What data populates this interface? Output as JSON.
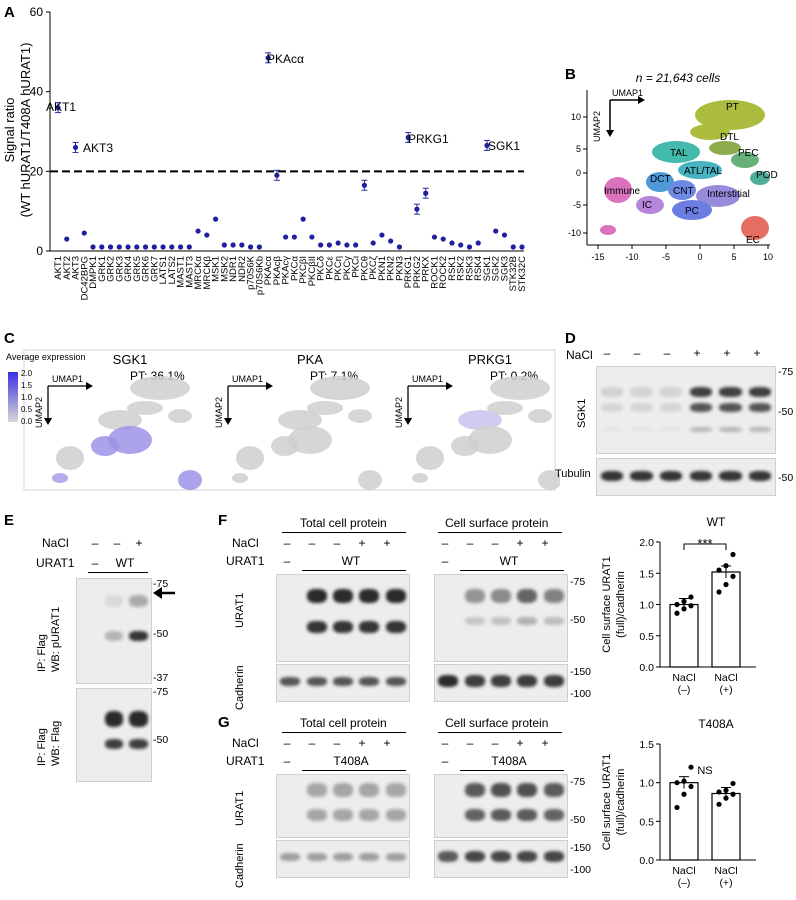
{
  "panels": {
    "A": "A",
    "B": "B",
    "C": "C",
    "D": "D",
    "E": "E",
    "F": "F",
    "G": "G"
  },
  "panelA": {
    "ylabel_line1": "Signal ratio",
    "ylabel_line2": "(WT hURAT1/T408A hURAT1)",
    "annotations": {
      "akt1": "AKT1",
      "akt3": "AKT3",
      "pkaca": "PKAcα",
      "prkg1": "PRKG1",
      "sgk1": "SGK1"
    }
  },
  "chart_data": [
    {
      "type": "scatter",
      "ylim": [
        0,
        60
      ],
      "yticks": [
        0,
        20,
        40,
        60
      ],
      "threshold": 20,
      "categories": [
        "AKT1",
        "AKT2",
        "AKT3",
        "CDC42BPG",
        "DMPK1",
        "GRK1",
        "GRK2",
        "GRK3",
        "GRK4",
        "GRK5",
        "GRK6",
        "GRK7",
        "LATS1",
        "LATS2",
        "MAST1",
        "MAST3",
        "MRCKα",
        "MRCKβ",
        "MSK1",
        "MSK2",
        "NDR1",
        "NDR2",
        "p70S6K",
        "p70S6Kb",
        "PKAcα",
        "PKAcβ",
        "PKAcγ",
        "PKCα",
        "PKCβI",
        "PKCβII",
        "PKCδ",
        "PKCε",
        "PKCη",
        "PKCγ",
        "PKCι",
        "PKCθ",
        "PKCζ",
        "PKN1",
        "PKN2",
        "PKN3",
        "PRKG1",
        "PRKG2",
        "PRKX",
        "ROCK1",
        "ROCK2",
        "RSK1",
        "RSK2",
        "RSK3",
        "RSK4",
        "SGK1",
        "SGK2",
        "SGK3",
        "STK32B",
        "STK32C"
      ],
      "values": [
        36,
        3,
        26,
        4.5,
        1,
        1,
        1,
        1,
        1,
        1,
        1,
        1,
        1,
        1,
        1,
        1,
        5,
        4,
        8,
        1.5,
        1.5,
        1.5,
        1,
        1,
        48.5,
        19,
        3.5,
        3.5,
        8,
        3.5,
        1.5,
        1.5,
        2,
        1.5,
        1.5,
        16.5,
        2,
        4,
        2.5,
        1,
        28.5,
        10.5,
        14.5,
        3.5,
        3,
        2,
        1.5,
        1,
        2,
        26.5,
        5,
        4,
        1,
        1
      ]
    },
    {
      "type": "bar",
      "title": "WT",
      "categories": [
        "NaCl (–)",
        "NaCl (+)"
      ],
      "values": [
        1.0,
        1.52
      ],
      "ylim": [
        0,
        2.0
      ],
      "yticks": [
        "0.0",
        "0.5",
        "1.0",
        "1.5",
        "2.0"
      ],
      "ylabel": "Cell surface URAT1 (full)/cadherin",
      "points": [
        [
          0.86,
          0.93,
          0.98,
          1.0,
          1.05,
          1.12
        ],
        [
          1.2,
          1.32,
          1.45,
          1.55,
          1.62,
          1.8
        ]
      ],
      "significance": "***"
    },
    {
      "type": "bar",
      "title": "T408A",
      "categories": [
        "NaCl (–)",
        "NaCl (+)"
      ],
      "values": [
        1.0,
        0.86
      ],
      "ylim": [
        0,
        1.5
      ],
      "yticks": [
        "0.0",
        "0.5",
        "1.0",
        "1.5"
      ],
      "ylabel": "Cell surface URAT1 (full)/cadherin",
      "points": [
        [
          0.68,
          0.85,
          0.95,
          1.0,
          1.02,
          1.2
        ],
        [
          0.72,
          0.8,
          0.85,
          0.88,
          0.9,
          0.99
        ]
      ],
      "significance": "NS"
    }
  ],
  "panelB": {
    "title": "n = 21,643 cells",
    "umap1": "UMAP1",
    "umap2": "UMAP2",
    "xticks": [
      "-15",
      "-10",
      "-5",
      "0",
      "5",
      "10"
    ],
    "yticks": [
      "10",
      "5",
      "0",
      "-5",
      "-10"
    ],
    "clusters": [
      {
        "name": "PT",
        "color": "#a3b52a"
      },
      {
        "name": "DTL",
        "color": "#7fa33a"
      },
      {
        "name": "PEC",
        "color": "#56a86b"
      },
      {
        "name": "POD",
        "color": "#3da58f"
      },
      {
        "name": "TAL",
        "color": "#2fb3a3"
      },
      {
        "name": "ATL/TAL",
        "color": "#32aabc"
      },
      {
        "name": "DCT",
        "color": "#3b8fd4"
      },
      {
        "name": "CNT",
        "color": "#5f7de0"
      },
      {
        "name": "Interstitial",
        "color": "#8c7fd9"
      },
      {
        "name": "PC",
        "color": "#5c6fe0"
      },
      {
        "name": "IC",
        "color": "#b07ad8"
      },
      {
        "name": "Immune",
        "color": "#d763b8"
      },
      {
        "name": "EC",
        "color": "#e35e52"
      }
    ]
  },
  "panelC": {
    "legend_title": "Average expression",
    "legend_ticks": [
      "2.0",
      "1.5",
      "1.0",
      "0.5",
      "0.0"
    ],
    "umap1": "UMAP1",
    "umap2": "UMAP2",
    "maps": [
      {
        "title": "SGK1",
        "pt": "PT: 36.1%"
      },
      {
        "title": "PKA",
        "pt": "PT: 7.1%"
      },
      {
        "title": "PRKG1",
        "pt": "PT: 0.2%"
      }
    ]
  },
  "panelD": {
    "nacl_label": "NaCl",
    "signs": [
      "–",
      "–",
      "–",
      "+",
      "+",
      "+"
    ],
    "sgk1_label": "SGK1",
    "tubulin_label": "Tubulin",
    "mw_sgk1": [
      "-75",
      "-50"
    ],
    "mw_tubulin": [
      "-50"
    ]
  },
  "panelE": {
    "nacl_label": "NaCl",
    "urat1_label": "URAT1",
    "nacl_signs": [
      "–",
      "–",
      "+"
    ],
    "urat1_signs": [
      "–",
      "WT"
    ],
    "blot1_label_line1": "IP: Flag",
    "blot1_label_line2": "WB: pURAT1",
    "blot2_label_line1": "IP: Flag",
    "blot2_label_line2": "WB: Flag",
    "mw1": [
      "-75",
      "-50",
      "-37"
    ],
    "mw2": [
      "-75",
      "-50"
    ]
  },
  "panelF": {
    "total_title": "Total cell protein",
    "surface_title": "Cell surface protein",
    "nacl_label": "NaCl",
    "urat1_label": "URAT1",
    "nacl_signs": [
      "–",
      "–",
      "–",
      "+",
      "+"
    ],
    "urat1_signs": [
      "–",
      "WT"
    ],
    "urat1_blot": "URAT1",
    "cadherin_blot": "Cadherin",
    "mw_urat1": [
      "-75",
      "-50"
    ],
    "mw_cad": [
      "-150",
      "-100"
    ]
  },
  "panelG": {
    "total_title": "Total cell protein",
    "surface_title": "Cell surface protein",
    "nacl_label": "NaCl",
    "urat1_label": "URAT1",
    "nacl_signs": [
      "–",
      "–",
      "–",
      "+",
      "+"
    ],
    "urat1_signs": [
      "–",
      "T408A"
    ],
    "urat1_blot": "URAT1",
    "cadherin_blot": "Cadherin",
    "mw_urat1": [
      "-75",
      "-50"
    ],
    "mw_cad": [
      "-150",
      "-100"
    ]
  }
}
